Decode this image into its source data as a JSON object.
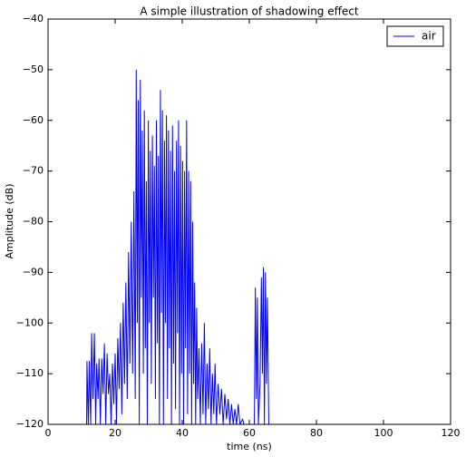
{
  "chart_data": {
    "type": "line",
    "title": "A simple illustration of shadowing effect",
    "x_label": "time (ns)",
    "y_label": "Amplitude (dB)",
    "xlim": [
      0,
      120
    ],
    "ylim": [
      -120,
      -40
    ],
    "xticks": [
      0,
      20,
      40,
      60,
      80,
      100,
      120
    ],
    "yticks": [
      {
        "value": -120,
        "label": "−120"
      },
      {
        "value": -110,
        "label": "−110"
      },
      {
        "value": -100,
        "label": "−100"
      },
      {
        "value": -90,
        "label": "−90"
      },
      {
        "value": -80,
        "label": "−80"
      },
      {
        "value": -70,
        "label": "−70"
      },
      {
        "value": -60,
        "label": "−60"
      },
      {
        "value": -50,
        "label": "−50"
      },
      {
        "value": -40,
        "label": "−40"
      }
    ],
    "grid": false,
    "legend": "upper right",
    "x": [
      11.5,
      11.6,
      12,
      12.3,
      12.7,
      13,
      13.4,
      13.8,
      14.2,
      14.5,
      14.9,
      15.2,
      15.6,
      16,
      16.4,
      16.8,
      17.2,
      17.6,
      18,
      18.4,
      18.8,
      19.2,
      19.6,
      20,
      20.4,
      20.8,
      21.2,
      21.6,
      22,
      22.4,
      22.8,
      23.2,
      23.6,
      24,
      24.4,
      24.8,
      25.2,
      25.6,
      26,
      26.3,
      26.6,
      26.9,
      27.2,
      27.5,
      27.8,
      28.1,
      28.4,
      28.7,
      29,
      29.3,
      29.6,
      29.9,
      30.2,
      30.5,
      30.8,
      31.1,
      31.4,
      31.7,
      32,
      32.3,
      32.6,
      32.9,
      33.2,
      33.5,
      33.8,
      34.1,
      34.4,
      34.7,
      35,
      35.3,
      35.6,
      35.9,
      36.2,
      36.5,
      36.8,
      37.1,
      37.4,
      37.7,
      38,
      38.3,
      38.6,
      38.9,
      39.2,
      39.5,
      39.8,
      40.1,
      40.4,
      40.7,
      41,
      41.3,
      41.6,
      41.9,
      42.2,
      42.5,
      42.8,
      43.1,
      43.4,
      43.7,
      44,
      44.3,
      44.6,
      45,
      45.4,
      45.8,
      46.2,
      46.6,
      47,
      47.4,
      47.8,
      48.2,
      48.6,
      49,
      49.4,
      49.8,
      50.2,
      50.7,
      51.2,
      51.7,
      52.2,
      52.7,
      53.2,
      53.7,
      54.2,
      54.7,
      55.2,
      55.7,
      56.2,
      56.7,
      57.2,
      58,
      58.4,
      61.5,
      61.8,
      62.1,
      62.4,
      62.7,
      63.2,
      63.6,
      63.9,
      64.2,
      64.5,
      64.8,
      65.1,
      65.4,
      65.8
    ],
    "series": [
      {
        "name": "air",
        "color": "#0000ff",
        "values": [
          -120,
          -107.5,
          -120,
          -107.5,
          -120,
          -102,
          -115,
          -102,
          -120,
          -108,
          -115,
          -107,
          -120,
          -107,
          -114,
          -104,
          -120,
          -106,
          -114,
          -110,
          -120,
          -108,
          -116,
          -106,
          -120,
          -103,
          -113,
          -100,
          -118,
          -96,
          -112,
          -92,
          -115,
          -86,
          -108,
          -80,
          -110,
          -74,
          -115,
          -50,
          -100,
          -56,
          -120,
          -52,
          -95,
          -62,
          -110,
          -58,
          -105,
          -72,
          -120,
          -60,
          -100,
          -66,
          -112,
          -63,
          -95,
          -69,
          -115,
          -60,
          -104,
          -67,
          -120,
          -54,
          -98,
          -58,
          -120,
          -64,
          -100,
          -59,
          -115,
          -62,
          -105,
          -66,
          -120,
          -61,
          -108,
          -70,
          -117,
          -64,
          -102,
          -60,
          -120,
          -65,
          -110,
          -68,
          -120,
          -70,
          -105,
          -60,
          -118,
          -70,
          -110,
          -72,
          -120,
          -80,
          -112,
          -92,
          -120,
          -97,
          -115,
          -105,
          -120,
          -104,
          -118,
          -100,
          -120,
          -108,
          -117,
          -105,
          -120,
          -110,
          -118,
          -108,
          -120,
          -112,
          -118,
          -113,
          -120,
          -114,
          -119,
          -115,
          -120,
          -116,
          -120,
          -117,
          -120,
          -116,
          -120,
          -119,
          -120,
          -120,
          -93,
          -115,
          -95,
          -120,
          -112,
          -91,
          -110,
          -89,
          -120,
          -90,
          -112,
          -95,
          -120
        ]
      }
    ]
  }
}
